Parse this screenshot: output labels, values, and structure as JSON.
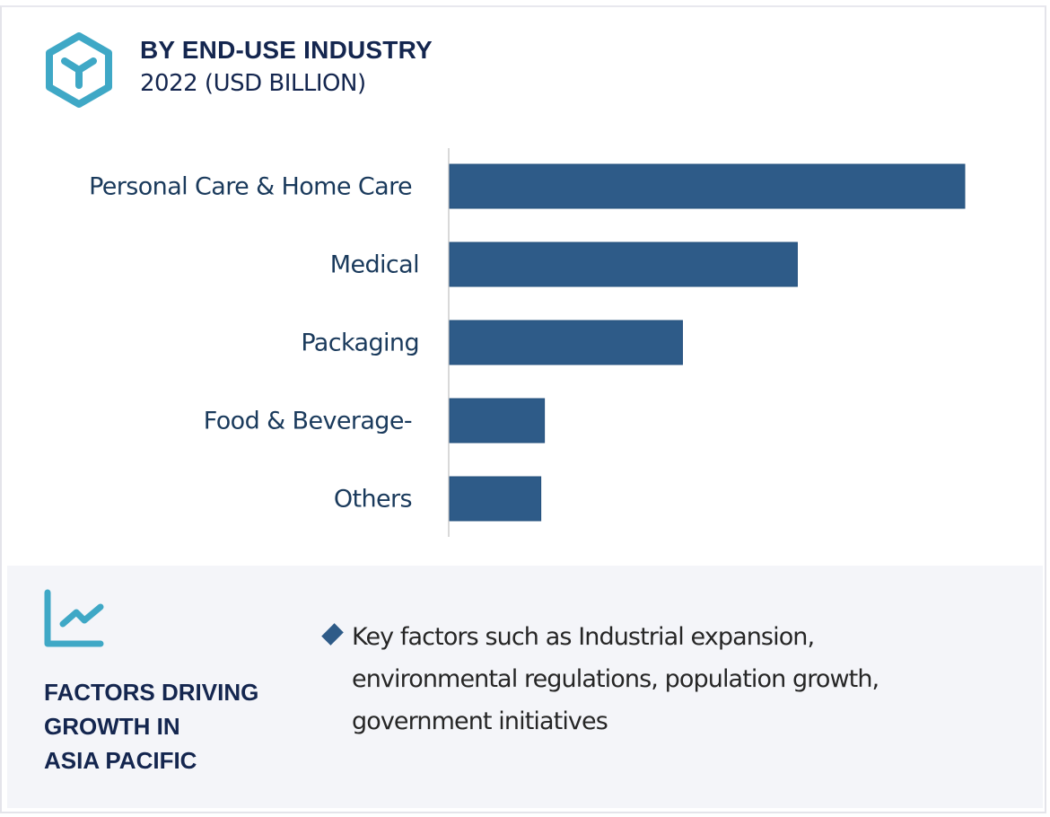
{
  "header": {
    "icon": "hexagon-y-icon",
    "title": "BY END-USE INDUSTRY",
    "subtitle": "2022 (USD BILLION)"
  },
  "colors": {
    "bar": "#2e5b88",
    "accent_icon": "#3fa8c6",
    "title_text": "#14264f",
    "panel_bg": "#f4f5f9"
  },
  "chart_data": {
    "type": "bar",
    "orientation": "horizontal",
    "title": "BY END-USE INDUSTRY",
    "subtitle": "2022 (USD BILLION)",
    "xlabel": "",
    "ylabel": "",
    "categories": [
      "Personal Care & Home Care",
      "Medical",
      "Packaging",
      "Food & Beverage-",
      "Others"
    ],
    "values": [
      100,
      67.5,
      45.2,
      18.4,
      17.7
    ],
    "value_note": "relative bar lengths (no axis ticks shown); largest = 100",
    "xlim": [
      0,
      100
    ],
    "grid": false,
    "legend": "none"
  },
  "panel": {
    "icon": "line-chart-icon",
    "title_lines": [
      "FACTORS DRIVING",
      "GROWTH IN",
      "ASIA PACIFIC"
    ],
    "bullet_icon": "diamond-bullet-icon",
    "bullet_lines": [
      "Key factors such as Industrial expansion,",
      "environmental regulations, population growth,",
      "government initiatives"
    ]
  }
}
